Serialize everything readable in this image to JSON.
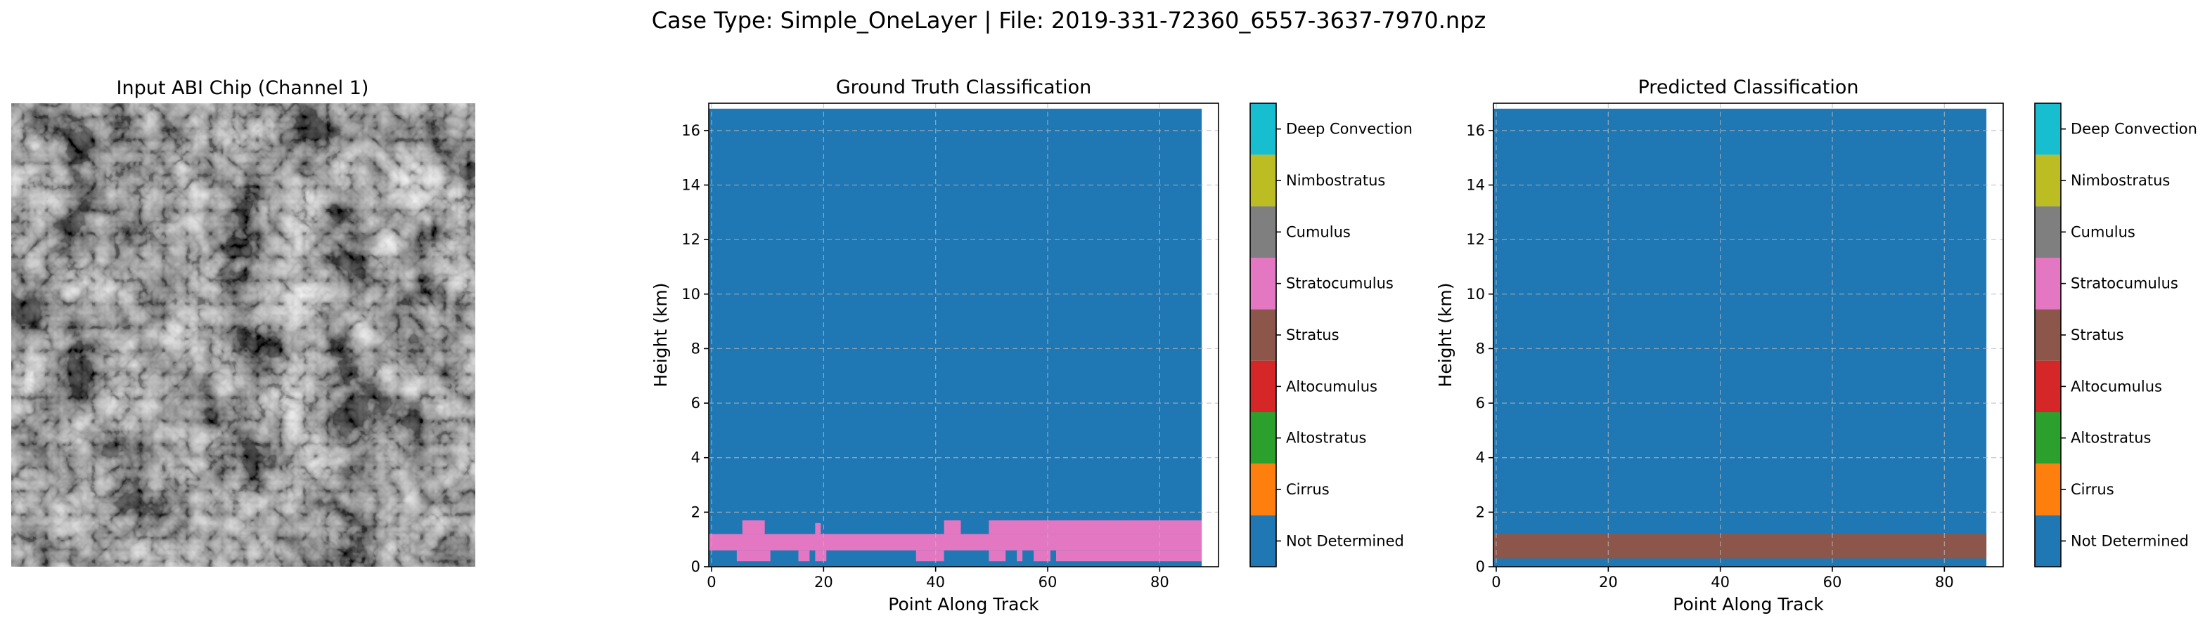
{
  "suptitle": "Case Type: Simple_OneLayer | File: 2019-331-72360_6557-3637-7970.npz",
  "input_panel": {
    "title": "Input ABI Chip (Channel 1)"
  },
  "colors": {
    "Not Determined": "#1f77b4",
    "Cirrus": "#ff7f0e",
    "Altostratus": "#2ca02c",
    "Altocumulus": "#d62728",
    "Stratus": "#8c564b",
    "Stratocumulus": "#e377c2",
    "Cumulus": "#7f7f7f",
    "Nimbostratus": "#bcbd22",
    "Deep Convection": "#17becf"
  },
  "colorbar": {
    "classes": [
      "Not Determined",
      "Cirrus",
      "Altostratus",
      "Altocumulus",
      "Stratus",
      "Stratocumulus",
      "Cumulus",
      "Nimbostratus",
      "Deep Convection"
    ]
  },
  "chart_data": [
    {
      "type": "heatmap",
      "title": "Ground Truth Classification",
      "xlabel": "Point Along Track",
      "ylabel": "Height (km)",
      "xlim": [
        -0.5,
        90.5
      ],
      "ylim": [
        0,
        17
      ],
      "xticks": [
        0,
        20,
        40,
        60,
        80
      ],
      "yticks": [
        0,
        2,
        4,
        6,
        8,
        10,
        12,
        14,
        16
      ],
      "grid": true,
      "background_class": "Not Determined",
      "data_x_range": [
        -0.5,
        87.5
      ],
      "data_y_range": [
        0,
        16.8
      ],
      "regions": [
        {
          "class": "Stratocumulus",
          "x": [
            -0.5,
            87.5
          ],
          "y": [
            0.6,
            1.2
          ]
        },
        {
          "class": "Stratocumulus",
          "x": [
            5.5,
            9.5
          ],
          "y": [
            1.2,
            1.7
          ]
        },
        {
          "class": "Stratocumulus",
          "x": [
            4.5,
            10.5
          ],
          "y": [
            0.2,
            0.6
          ]
        },
        {
          "class": "Stratocumulus",
          "x": [
            15.5,
            17.5
          ],
          "y": [
            0.2,
            0.6
          ]
        },
        {
          "class": "Stratocumulus",
          "x": [
            18.5,
            19.5
          ],
          "y": [
            1.2,
            1.6
          ]
        },
        {
          "class": "Stratocumulus",
          "x": [
            18.5,
            20.5
          ],
          "y": [
            0.2,
            0.6
          ]
        },
        {
          "class": "Stratocumulus",
          "x": [
            36.5,
            41.5
          ],
          "y": [
            0.2,
            0.6
          ]
        },
        {
          "class": "Stratocumulus",
          "x": [
            41.5,
            44.5
          ],
          "y": [
            1.2,
            1.7
          ]
        },
        {
          "class": "Stratocumulus",
          "x": [
            49.5,
            87.5
          ],
          "y": [
            1.2,
            1.7
          ]
        },
        {
          "class": "Stratocumulus",
          "x": [
            49.5,
            52.5
          ],
          "y": [
            0.2,
            0.6
          ]
        },
        {
          "class": "Stratocumulus",
          "x": [
            54.5,
            55.5
          ],
          "y": [
            0.2,
            0.6
          ]
        },
        {
          "class": "Stratocumulus",
          "x": [
            57.5,
            60.5
          ],
          "y": [
            0.2,
            0.6
          ]
        },
        {
          "class": "Stratocumulus",
          "x": [
            61.5,
            87.5
          ],
          "y": [
            0.2,
            0.6
          ]
        }
      ]
    },
    {
      "type": "heatmap",
      "title": "Predicted Classification",
      "xlabel": "Point Along Track",
      "ylabel": "Height (km)",
      "xlim": [
        -0.5,
        90.5
      ],
      "ylim": [
        0,
        17
      ],
      "xticks": [
        0,
        20,
        40,
        60,
        80
      ],
      "yticks": [
        0,
        2,
        4,
        6,
        8,
        10,
        12,
        14,
        16
      ],
      "grid": true,
      "background_class": "Not Determined",
      "data_x_range": [
        -0.5,
        87.5
      ],
      "data_y_range": [
        0,
        16.8
      ],
      "regions": [
        {
          "class": "Stratus",
          "x": [
            -0.5,
            87.5
          ],
          "y": [
            0.3,
            1.2
          ]
        }
      ]
    }
  ]
}
